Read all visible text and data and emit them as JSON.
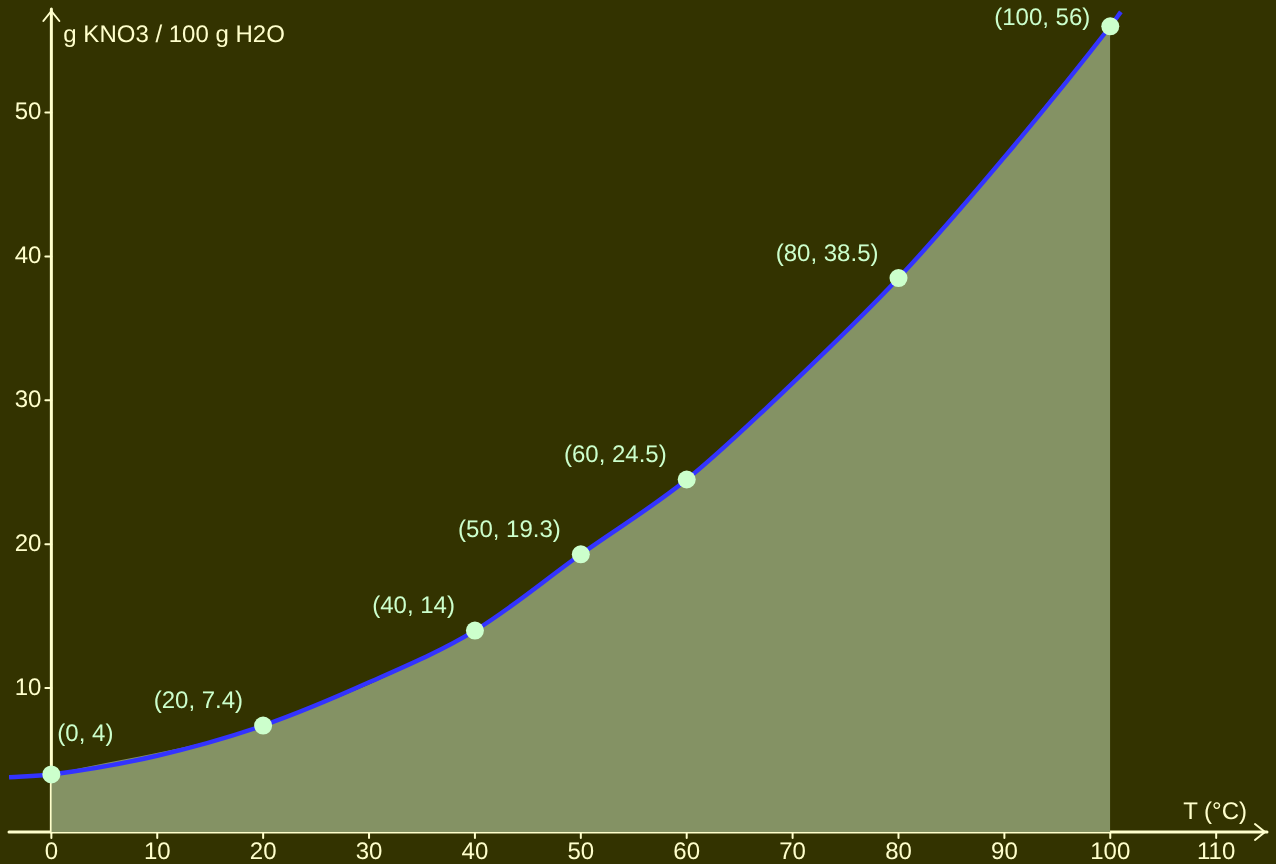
{
  "chart_data": {
    "type": "area",
    "xlabel": "T (°C)",
    "ylabel": "g KNO3 / 100 g H2O",
    "xlim": [
      -4,
      114.8
    ],
    "ylim": [
      0,
      57.2
    ],
    "xticks": [
      0,
      10,
      20,
      30,
      40,
      50,
      60,
      70,
      80,
      90,
      100,
      110
    ],
    "yticks": [
      10,
      20,
      30,
      40,
      50
    ],
    "series": [
      {
        "color": "#849264",
        "x": [
          0,
          20,
          40,
          50,
          60,
          80,
          100
        ],
        "values": [
          4,
          7.4,
          14,
          19.3,
          24.5,
          38.5,
          56
        ]
      },
      {
        "type": "line",
        "color": "#3333ff",
        "x": [
          -4,
          0,
          10,
          20,
          30,
          40,
          50,
          60,
          70,
          80,
          90,
          100,
          101
        ],
        "values": [
          3.8,
          4,
          5.3,
          7.4,
          10.4,
          14,
          19.3,
          24.5,
          31.2,
          38.5,
          46.9,
          56,
          57
        ]
      },
      {
        "type": "scatter",
        "marker": "circle",
        "color": "#ccffcc",
        "x": [
          0,
          20,
          40,
          50,
          60,
          80,
          100
        ],
        "values": [
          4,
          7.4,
          14,
          19.3,
          24.5,
          38.5,
          56
        ],
        "value_labels": [
          "(0, 4)",
          "(20, 7.4)",
          "(40, 14)",
          "(50, 19.3)",
          "(60, 24.5)",
          "(80, 38.5)",
          "(100, 56)"
        ]
      }
    ]
  }
}
